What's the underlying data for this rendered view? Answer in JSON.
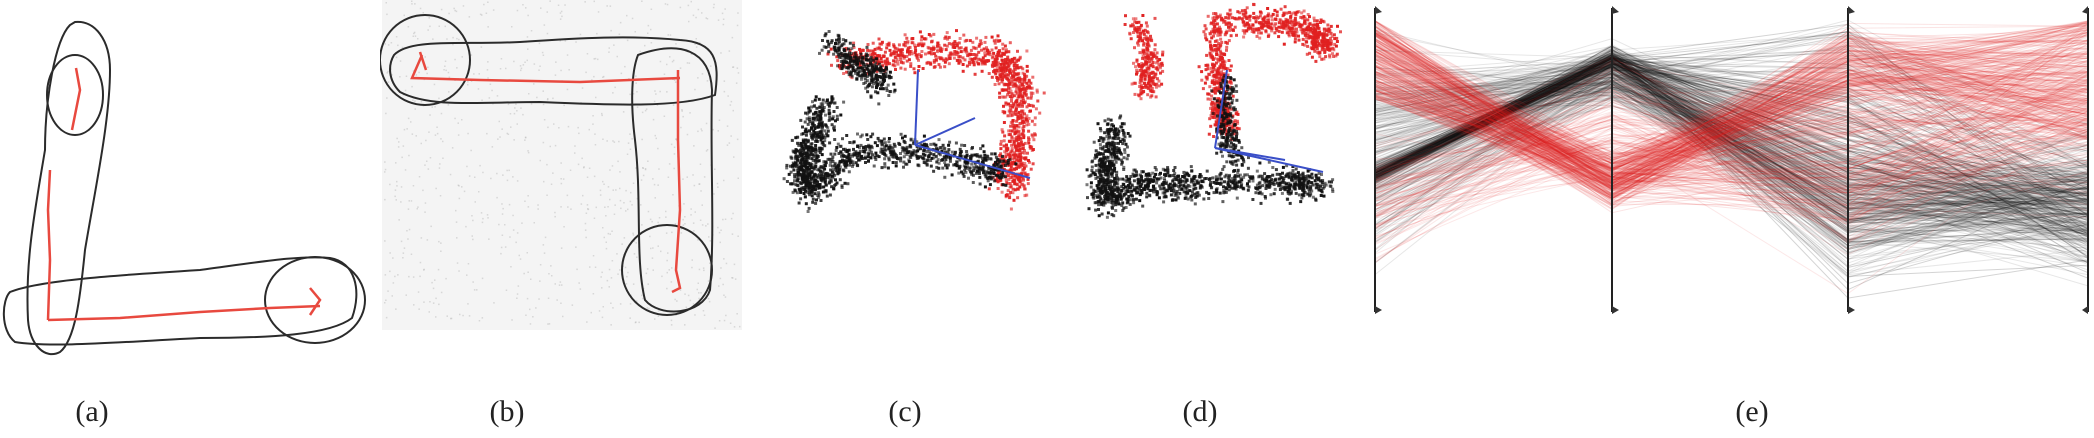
{
  "figure": {
    "panels": [
      {
        "id": "a",
        "label": "(a)",
        "content": "L-shaped sketch outline with red centerline and joint circles"
      },
      {
        "id": "b",
        "label": "(b)",
        "content": "inverted-L outline over noisy grey background"
      },
      {
        "id": "c",
        "label": "(c)",
        "content": "scatter of red and black points with blue axis vectors"
      },
      {
        "id": "d",
        "label": "(d)",
        "content": "second scatter of red and black points with blue axis vectors"
      },
      {
        "id": "e",
        "label": "(e)",
        "content": "parallel coordinates plot with red and black polylines across four axes"
      }
    ]
  },
  "colors": {
    "outline": "#2b2b2b",
    "centerline": "#e8493f",
    "red_points": "#e02020",
    "black_points": "#111111",
    "axes_vectors": "#3a4fc8",
    "background": "#ffffff"
  }
}
